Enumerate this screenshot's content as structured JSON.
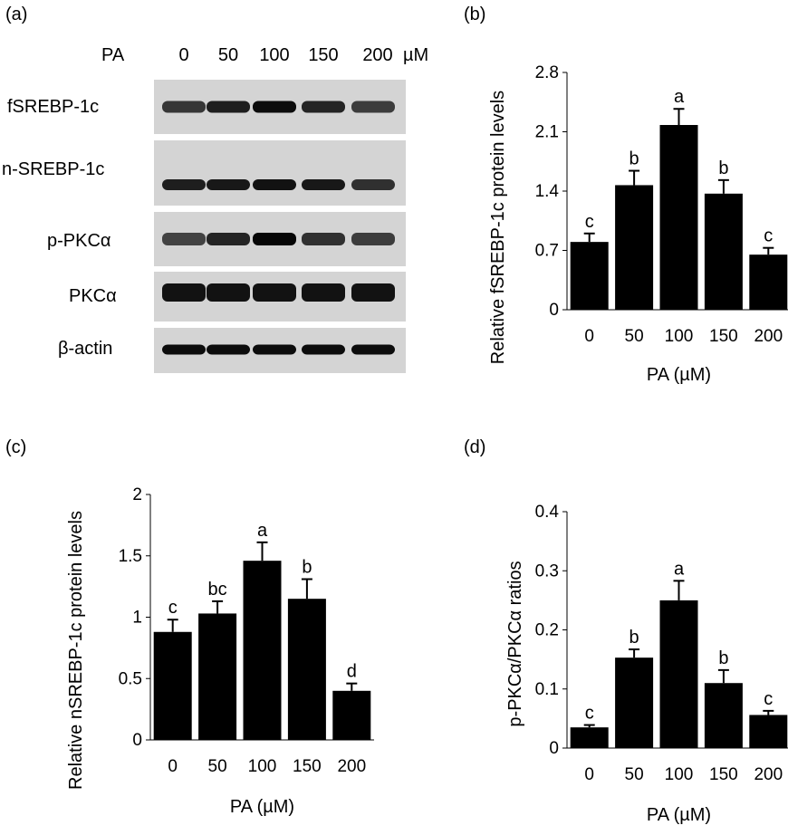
{
  "western_blot": {
    "panel_label": "(a)",
    "treatment_label": "PA",
    "doses": [
      "0",
      "50",
      "100",
      "150",
      "200"
    ],
    "unit": "µM",
    "blots": [
      {
        "label": "fSREBP-1c",
        "band_intensity": [
          0.55,
          0.75,
          0.9,
          0.7,
          0.5
        ]
      },
      {
        "label": "n-SREBP-1c",
        "band_intensity": [
          0.75,
          0.8,
          0.85,
          0.8,
          0.6
        ]
      },
      {
        "label": "p-PKCα",
        "band_intensity": [
          0.45,
          0.7,
          0.95,
          0.6,
          0.5
        ]
      },
      {
        "label": "PKCα",
        "band_intensity": [
          0.85,
          0.85,
          0.85,
          0.85,
          0.85
        ]
      },
      {
        "label": "β-actin",
        "band_intensity": [
          0.9,
          0.9,
          0.9,
          0.9,
          0.9
        ]
      }
    ]
  },
  "chart_data": [
    {
      "panel": "(b)",
      "type": "bar",
      "categories": [
        "0",
        "50",
        "100",
        "150",
        "200"
      ],
      "values": [
        0.8,
        1.47,
        2.18,
        1.37,
        0.65
      ],
      "errors": [
        0.1,
        0.17,
        0.19,
        0.16,
        0.08
      ],
      "significance": [
        "c",
        "b",
        "a",
        "b",
        "c"
      ],
      "xlabel": "PA (µM)",
      "ylabel": "Relative fSREBP-1c protein levels",
      "ylim": [
        0,
        2.8
      ],
      "yticks": [
        "0",
        "0.7",
        "1.4",
        "2.1",
        "2.8"
      ]
    },
    {
      "panel": "(c)",
      "type": "bar",
      "categories": [
        "0",
        "50",
        "100",
        "150",
        "200"
      ],
      "values": [
        0.88,
        1.03,
        1.46,
        1.15,
        0.4
      ],
      "errors": [
        0.1,
        0.1,
        0.15,
        0.16,
        0.06
      ],
      "significance": [
        "c",
        "bc",
        "a",
        "b",
        "d"
      ],
      "xlabel": "PA (µM)",
      "ylabel": "Relative nSREBP-1c protein levels",
      "ylim": [
        0,
        2
      ],
      "yticks": [
        "0",
        "0.5",
        "1",
        "1.5",
        "2"
      ]
    },
    {
      "panel": "(d)",
      "type": "bar",
      "categories": [
        "0",
        "50",
        "100",
        "150",
        "200"
      ],
      "values": [
        0.035,
        0.153,
        0.25,
        0.11,
        0.056
      ],
      "errors": [
        0.004,
        0.014,
        0.033,
        0.022,
        0.007
      ],
      "significance": [
        "c",
        "b",
        "a",
        "b",
        "c"
      ],
      "xlabel": "PA (µM)",
      "ylabel": "p-PKCα/PKCα ratios",
      "ylim": [
        0,
        0.4
      ],
      "yticks": [
        "0",
        "0.1",
        "0.2",
        "0.3",
        "0.4"
      ]
    }
  ]
}
